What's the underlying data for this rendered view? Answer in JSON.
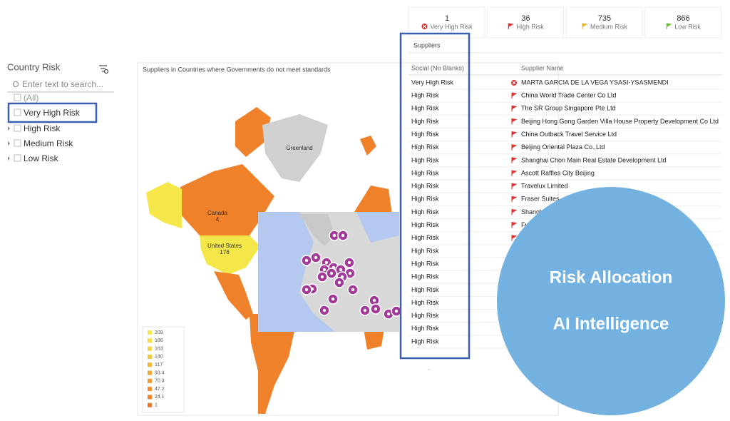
{
  "kpis": [
    {
      "value": "1",
      "label": "Very High Risk"
    },
    {
      "value": "36",
      "label": "High Risk"
    },
    {
      "value": "735",
      "label": "Medium Risk"
    },
    {
      "value": "866",
      "label": "Low Risk"
    }
  ],
  "filter": {
    "title": "Country Risk",
    "search": "Enter text to search...",
    "items": [
      "(All)",
      "Very High Risk",
      "High Risk",
      "Medium Risk",
      "Low Risk"
    ]
  },
  "map": {
    "title": "Suppliers in Countries where Governments do not meet standards",
    "labels": [
      "Greenland",
      "Canada",
      "4",
      "United States",
      "176"
    ],
    "legend": {
      "values": [
        209,
        186,
        163,
        140,
        117,
        93.4,
        70.3,
        47.2,
        24.1,
        1
      ],
      "colors": [
        "#f5e74a",
        "#f5dc45",
        "#f5d040",
        "#f5c53b",
        "#f4b636",
        "#f3a833",
        "#f29a30",
        "#f08d2d",
        "#ef812b",
        "#ee7629"
      ]
    }
  },
  "table": {
    "title": "Suppliers",
    "headers": [
      "Social (No Blanks)",
      "Supplier Name"
    ],
    "social": [
      "Very High Risk",
      "High Risk",
      "High Risk",
      "High Risk",
      "High Risk",
      "High Risk",
      "High Risk",
      "High Risk",
      "High Risk",
      "High Risk",
      "High Risk",
      "High Risk",
      "High Risk",
      "High Risk",
      "High Risk",
      "High Risk",
      "High Risk",
      "High Risk",
      "High Risk",
      "High Risk",
      "High Risk"
    ],
    "names": [
      "MARTA GARCIA DE LA VEGA YSASI-YSASMENDI",
      "China World Trade Center Co Ltd",
      "The SR Group Singapore Pte Ltd",
      "Beijing Hong Gong Garden Villa House Property Development Co Ltd",
      "China Outback Travel Service Ltd",
      "Beijing Oriental Plaza Co.,Ltd",
      "Shanghai Chon Main Real Estate Development Ltd",
      "Ascott Raffles City Beijing",
      "Travelux Limited",
      "Fraser Suites",
      "Shanghai",
      "Fuli",
      null,
      null,
      null,
      null,
      null,
      null,
      null,
      null,
      null
    ]
  },
  "callout": [
    "Risk Allocation",
    "AI Intelligence"
  ]
}
